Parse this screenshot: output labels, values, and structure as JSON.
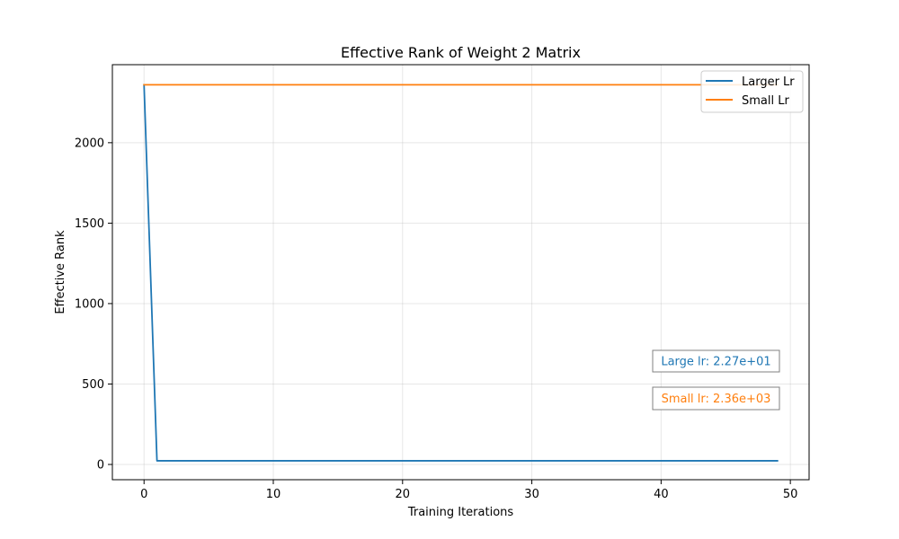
{
  "chart_data": {
    "type": "line",
    "title": "Effective Rank of Weight 2 Matrix",
    "xlabel": "Training Iterations",
    "ylabel": "Effective Rank",
    "xlim": [
      -2.45,
      51.45
    ],
    "ylim": [
      -94.8,
      2485
    ],
    "xticks": [
      0,
      10,
      20,
      30,
      40,
      50
    ],
    "yticks": [
      0,
      500,
      1000,
      1500,
      2000
    ],
    "grid": true,
    "legend_position": "top-right",
    "series": [
      {
        "name": "Larger Lr",
        "color": "#1f77b4",
        "x": [
          0,
          1,
          2,
          3,
          4,
          5,
          6,
          7,
          8,
          9,
          10,
          11,
          12,
          13,
          14,
          15,
          16,
          17,
          18,
          19,
          20,
          21,
          22,
          23,
          24,
          25,
          26,
          27,
          28,
          29,
          30,
          31,
          32,
          33,
          34,
          35,
          36,
          37,
          38,
          39,
          40,
          41,
          42,
          43,
          44,
          45,
          46,
          47,
          48,
          49
        ],
        "y": [
          2360,
          22.7,
          22.7,
          22.7,
          22.7,
          22.7,
          22.7,
          22.7,
          22.7,
          22.7,
          22.7,
          22.7,
          22.7,
          22.7,
          22.7,
          22.7,
          22.7,
          22.7,
          22.7,
          22.7,
          22.7,
          22.7,
          22.7,
          22.7,
          22.7,
          22.7,
          22.7,
          22.7,
          22.7,
          22.7,
          22.7,
          22.7,
          22.7,
          22.7,
          22.7,
          22.7,
          22.7,
          22.7,
          22.7,
          22.7,
          22.7,
          22.7,
          22.7,
          22.7,
          22.7,
          22.7,
          22.7,
          22.7,
          22.7,
          22.7
        ]
      },
      {
        "name": "Small Lr",
        "color": "#ff7f0e",
        "x": [
          0,
          1,
          2,
          3,
          4,
          5,
          6,
          7,
          8,
          9,
          10,
          11,
          12,
          13,
          14,
          15,
          16,
          17,
          18,
          19,
          20,
          21,
          22,
          23,
          24,
          25,
          26,
          27,
          28,
          29,
          30,
          31,
          32,
          33,
          34,
          35,
          36,
          37,
          38,
          39,
          40,
          41,
          42,
          43,
          44,
          45,
          46,
          47,
          48,
          49
        ],
        "y": [
          2360,
          2360,
          2360,
          2360,
          2360,
          2360,
          2360,
          2360,
          2360,
          2360,
          2360,
          2360,
          2360,
          2360,
          2360,
          2360,
          2360,
          2360,
          2360,
          2360,
          2360,
          2360,
          2360,
          2360,
          2360,
          2360,
          2360,
          2360,
          2360,
          2360,
          2360,
          2360,
          2360,
          2360,
          2360,
          2360,
          2360,
          2360,
          2360,
          2360,
          2360,
          2360,
          2360,
          2360,
          2360,
          2360,
          2360,
          2360,
          2360,
          2360
        ]
      }
    ],
    "annotations": [
      {
        "text": "Large lr: 2.27e+01",
        "color": "#1f77b4"
      },
      {
        "text": "Small lr: 2.36e+03",
        "color": "#ff7f0e"
      }
    ]
  }
}
